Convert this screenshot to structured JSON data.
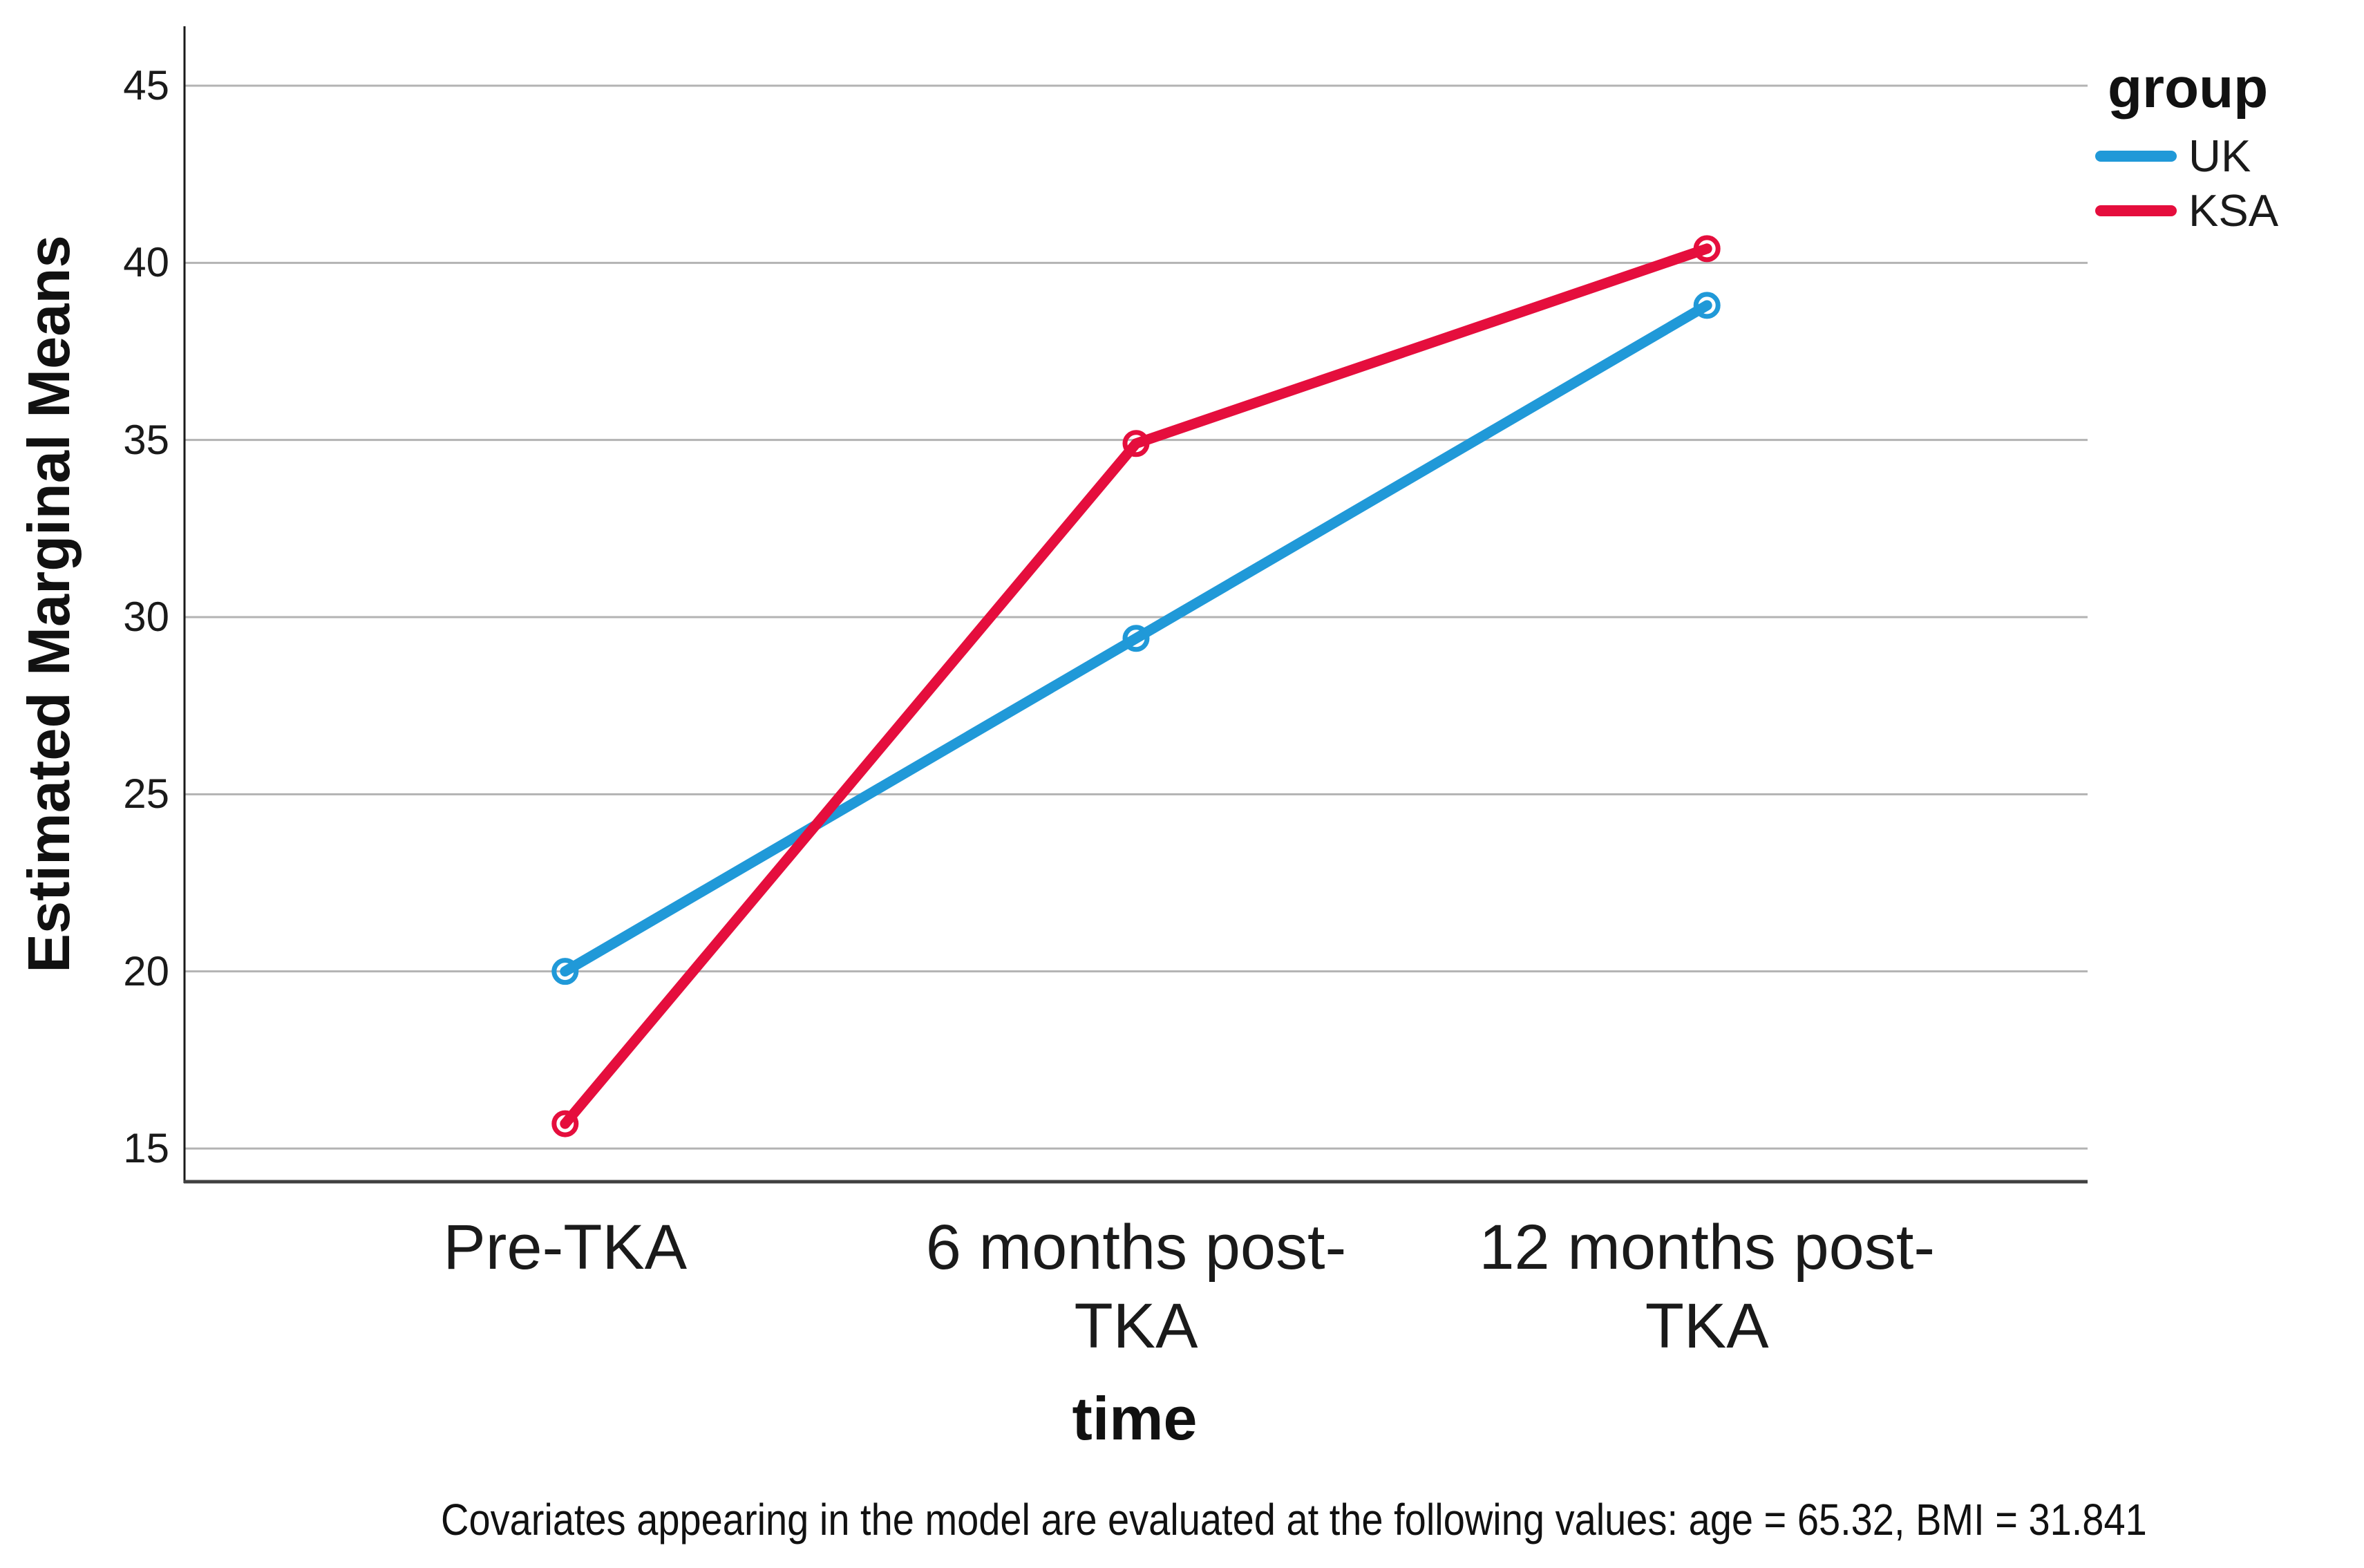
{
  "chart_data": {
    "type": "line",
    "categories": [
      "Pre-TKA",
      "6 months post-TKA",
      "12 months post-TKA"
    ],
    "category_lines": [
      [
        "Pre-TKA"
      ],
      [
        "6 months post-",
        "TKA"
      ],
      [
        "12 months post-",
        "TKA"
      ]
    ],
    "series": [
      {
        "name": "UK",
        "color": "#2099D8",
        "values": [
          20.0,
          29.4,
          38.8
        ]
      },
      {
        "name": "KSA",
        "color": "#E50E3D",
        "values": [
          15.7,
          34.9,
          40.4
        ]
      }
    ],
    "xlabel": "time",
    "ylabel": "Estimated Marginal Means",
    "yticks": [
      15,
      20,
      25,
      30,
      35,
      40,
      45
    ],
    "ylim": [
      14.1,
      46.7
    ],
    "grid": true,
    "legend_title": "group",
    "legend_position": "top-right",
    "marker": "open-circle"
  },
  "footnote": "Covariates appearing in the model are evaluated at the following values: age = 65.32, BMI = 31.841",
  "colors": {
    "grid": "#B3B3B3",
    "y_axis": "#1a1a1a",
    "x_axis": "#404040",
    "background": "#ffffff"
  }
}
